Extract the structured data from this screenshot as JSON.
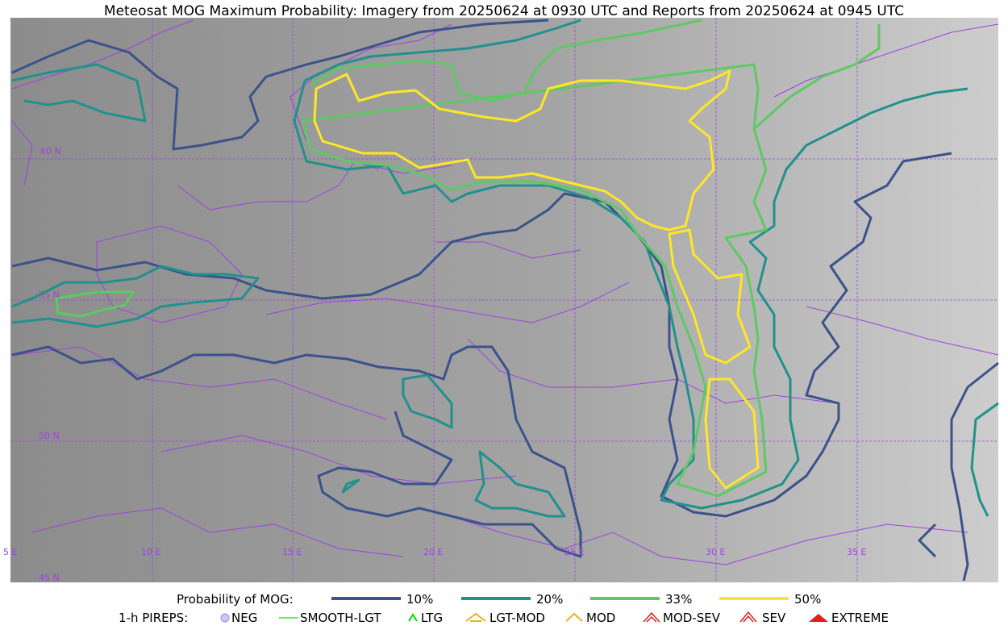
{
  "title": "Meteosat MOG Maximum Probability: Imagery from 20250624 at 0930 UTC and Reports from 20250624 at 0945 UTC",
  "map": {
    "lat_labels": [
      "60 N",
      "55 N",
      "50 N",
      "45 N"
    ],
    "lon_labels": [
      "5 E",
      "10 E",
      "15 E",
      "20 E",
      "25 E",
      "30 E",
      "35 E"
    ]
  },
  "legend": {
    "probability": {
      "title": "Probability of MOG:",
      "levels": [
        {
          "label": "10%",
          "color": "#3b528b"
        },
        {
          "label": "20%",
          "color": "#21918c"
        },
        {
          "label": "33%",
          "color": "#5ec962"
        },
        {
          "label": "50%",
          "color": "#fde725"
        }
      ]
    },
    "pireps": {
      "title": "1-h PIREPS:",
      "items": [
        "NEG",
        "SMOOTH-LGT",
        "LTG",
        "LGT-MOD",
        "MOD",
        "MOD-SEV",
        "SEV",
        "EXTREME"
      ]
    }
  }
}
